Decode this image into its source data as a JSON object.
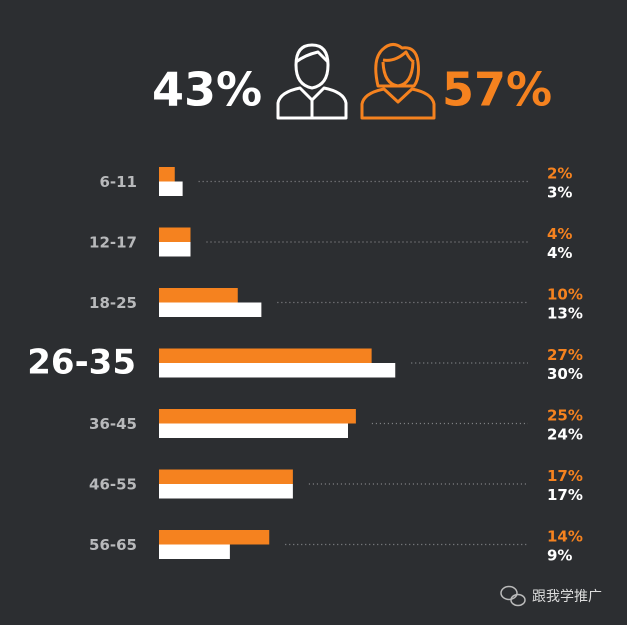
{
  "header": {
    "male_share": "43%",
    "female_share": "57%"
  },
  "chart_data": {
    "type": "bar",
    "orientation": "horizontal",
    "categories": [
      "6-11",
      "12-17",
      "18-25",
      "26-35",
      "36-45",
      "46-55",
      "56-65"
    ],
    "highlight_index": 3,
    "series": [
      {
        "color": "#f5821f",
        "values": [
          2,
          4,
          10,
          27,
          25,
          17,
          14
        ],
        "value_labels": [
          "2%",
          "4%",
          "10%",
          "27%",
          "25%",
          "17%",
          "14%"
        ]
      },
      {
        "color": "#ffffff",
        "values": [
          3,
          4,
          13,
          30,
          24,
          17,
          9
        ],
        "value_labels": [
          "3%",
          "4%",
          "13%",
          "30%",
          "24%",
          "17%",
          "9%"
        ]
      }
    ],
    "xlim": [
      0,
      40
    ]
  },
  "footer": {
    "watermark": "跟我学推广"
  }
}
